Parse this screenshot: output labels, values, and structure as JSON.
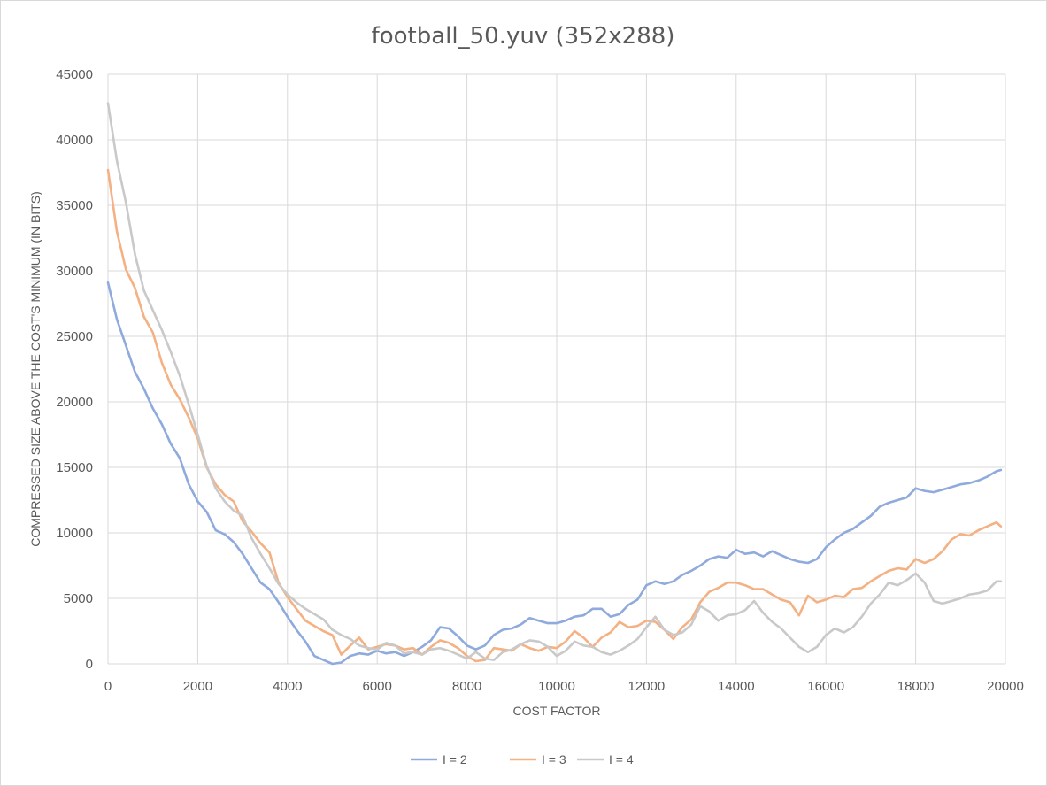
{
  "chart_data": {
    "type": "line",
    "title": "football_50.yuv (352x288)",
    "xlabel": "COST FACTOR",
    "ylabel": "COMPRESSED SIZE ABOVE THE COST'S MINIMUM (IN BITS)",
    "xlim": [
      0,
      20000
    ],
    "ylim": [
      0,
      45000
    ],
    "x_ticks": [
      "0",
      "2000",
      "4000",
      "6000",
      "8000",
      "10000",
      "12000",
      "14000",
      "16000",
      "18000",
      "20000"
    ],
    "y_ticks": [
      "0",
      "5000",
      "10000",
      "15000",
      "20000",
      "25000",
      "30000",
      "35000",
      "40000",
      "45000"
    ],
    "grid": true,
    "legend_position": "bottom",
    "series": [
      {
        "name": "I = 2",
        "color": "#8faadc",
        "points": [
          [
            0,
            29100
          ],
          [
            200,
            26300
          ],
          [
            400,
            24300
          ],
          [
            600,
            22300
          ],
          [
            800,
            21000
          ],
          [
            1000,
            19500
          ],
          [
            1200,
            18300
          ],
          [
            1400,
            16800
          ],
          [
            1600,
            15700
          ],
          [
            1800,
            13700
          ],
          [
            2000,
            12400
          ],
          [
            2200,
            11600
          ],
          [
            2400,
            10200
          ],
          [
            2600,
            9900
          ],
          [
            2800,
            9300
          ],
          [
            3000,
            8400
          ],
          [
            3200,
            7300
          ],
          [
            3400,
            6200
          ],
          [
            3600,
            5700
          ],
          [
            3800,
            4700
          ],
          [
            4000,
            3600
          ],
          [
            4200,
            2600
          ],
          [
            4400,
            1700
          ],
          [
            4600,
            600
          ],
          [
            4800,
            300
          ],
          [
            5000,
            0
          ],
          [
            5200,
            100
          ],
          [
            5400,
            600
          ],
          [
            5600,
            800
          ],
          [
            5800,
            700
          ],
          [
            6000,
            1000
          ],
          [
            6200,
            800
          ],
          [
            6400,
            900
          ],
          [
            6600,
            600
          ],
          [
            6800,
            900
          ],
          [
            7000,
            1300
          ],
          [
            7200,
            1800
          ],
          [
            7400,
            2800
          ],
          [
            7600,
            2700
          ],
          [
            7800,
            2100
          ],
          [
            8000,
            1400
          ],
          [
            8200,
            1100
          ],
          [
            8400,
            1400
          ],
          [
            8600,
            2200
          ],
          [
            8800,
            2600
          ],
          [
            9000,
            2700
          ],
          [
            9200,
            3000
          ],
          [
            9400,
            3500
          ],
          [
            9600,
            3300
          ],
          [
            9800,
            3100
          ],
          [
            10000,
            3100
          ],
          [
            10200,
            3300
          ],
          [
            10400,
            3600
          ],
          [
            10600,
            3700
          ],
          [
            10800,
            4200
          ],
          [
            11000,
            4200
          ],
          [
            11200,
            3600
          ],
          [
            11400,
            3800
          ],
          [
            11600,
            4500
          ],
          [
            11800,
            4900
          ],
          [
            12000,
            6000
          ],
          [
            12200,
            6300
          ],
          [
            12400,
            6100
          ],
          [
            12600,
            6300
          ],
          [
            12800,
            6800
          ],
          [
            13000,
            7100
          ],
          [
            13200,
            7500
          ],
          [
            13400,
            8000
          ],
          [
            13600,
            8200
          ],
          [
            13800,
            8100
          ],
          [
            14000,
            8700
          ],
          [
            14200,
            8400
          ],
          [
            14400,
            8500
          ],
          [
            14600,
            8200
          ],
          [
            14800,
            8600
          ],
          [
            15000,
            8300
          ],
          [
            15200,
            8000
          ],
          [
            15400,
            7800
          ],
          [
            15600,
            7700
          ],
          [
            15800,
            8000
          ],
          [
            16000,
            8900
          ],
          [
            16200,
            9500
          ],
          [
            16400,
            10000
          ],
          [
            16600,
            10300
          ],
          [
            16800,
            10800
          ],
          [
            17000,
            11300
          ],
          [
            17200,
            12000
          ],
          [
            17400,
            12300
          ],
          [
            17600,
            12500
          ],
          [
            17800,
            12700
          ],
          [
            18000,
            13400
          ],
          [
            18200,
            13200
          ],
          [
            18400,
            13100
          ],
          [
            18600,
            13300
          ],
          [
            18800,
            13500
          ],
          [
            19000,
            13700
          ],
          [
            19200,
            13800
          ],
          [
            19400,
            14000
          ],
          [
            19600,
            14300
          ],
          [
            19800,
            14700
          ],
          [
            19900,
            14800
          ]
        ]
      },
      {
        "name": "I = 3",
        "color": "#f4b183",
        "points": [
          [
            0,
            37700
          ],
          [
            200,
            33000
          ],
          [
            400,
            30100
          ],
          [
            600,
            28700
          ],
          [
            800,
            26500
          ],
          [
            1000,
            25300
          ],
          [
            1200,
            23000
          ],
          [
            1400,
            21300
          ],
          [
            1600,
            20200
          ],
          [
            1800,
            18800
          ],
          [
            2000,
            17200
          ],
          [
            2200,
            15000
          ],
          [
            2400,
            13700
          ],
          [
            2600,
            12900
          ],
          [
            2800,
            12400
          ],
          [
            3000,
            10900
          ],
          [
            3200,
            10100
          ],
          [
            3400,
            9200
          ],
          [
            3600,
            8500
          ],
          [
            3800,
            6200
          ],
          [
            4000,
            5100
          ],
          [
            4200,
            4200
          ],
          [
            4400,
            3300
          ],
          [
            4600,
            2900
          ],
          [
            4800,
            2500
          ],
          [
            5000,
            2200
          ],
          [
            5200,
            700
          ],
          [
            5400,
            1400
          ],
          [
            5600,
            2000
          ],
          [
            5800,
            1100
          ],
          [
            6000,
            1300
          ],
          [
            6200,
            1500
          ],
          [
            6400,
            1400
          ],
          [
            6600,
            1100
          ],
          [
            6800,
            1200
          ],
          [
            7000,
            700
          ],
          [
            7200,
            1300
          ],
          [
            7400,
            1800
          ],
          [
            7600,
            1600
          ],
          [
            7800,
            1200
          ],
          [
            8000,
            600
          ],
          [
            8200,
            200
          ],
          [
            8400,
            300
          ],
          [
            8600,
            1200
          ],
          [
            8800,
            1100
          ],
          [
            9000,
            1000
          ],
          [
            9200,
            1500
          ],
          [
            9400,
            1200
          ],
          [
            9600,
            1000
          ],
          [
            9800,
            1300
          ],
          [
            10000,
            1200
          ],
          [
            10200,
            1700
          ],
          [
            10400,
            2500
          ],
          [
            10600,
            2000
          ],
          [
            10800,
            1300
          ],
          [
            11000,
            2000
          ],
          [
            11200,
            2400
          ],
          [
            11400,
            3200
          ],
          [
            11600,
            2800
          ],
          [
            11800,
            2900
          ],
          [
            12000,
            3300
          ],
          [
            12200,
            3200
          ],
          [
            12400,
            2600
          ],
          [
            12600,
            1900
          ],
          [
            12800,
            2800
          ],
          [
            13000,
            3400
          ],
          [
            13200,
            4700
          ],
          [
            13400,
            5500
          ],
          [
            13600,
            5800
          ],
          [
            13800,
            6200
          ],
          [
            14000,
            6200
          ],
          [
            14200,
            6000
          ],
          [
            14400,
            5700
          ],
          [
            14600,
            5700
          ],
          [
            14800,
            5300
          ],
          [
            15000,
            4900
          ],
          [
            15200,
            4700
          ],
          [
            15400,
            3700
          ],
          [
            15600,
            5200
          ],
          [
            15800,
            4700
          ],
          [
            16000,
            4900
          ],
          [
            16200,
            5200
          ],
          [
            16400,
            5100
          ],
          [
            16600,
            5700
          ],
          [
            16800,
            5800
          ],
          [
            17000,
            6300
          ],
          [
            17200,
            6700
          ],
          [
            17400,
            7100
          ],
          [
            17600,
            7300
          ],
          [
            17800,
            7200
          ],
          [
            18000,
            8000
          ],
          [
            18200,
            7700
          ],
          [
            18400,
            8000
          ],
          [
            18600,
            8600
          ],
          [
            18800,
            9500
          ],
          [
            19000,
            9900
          ],
          [
            19200,
            9800
          ],
          [
            19400,
            10200
          ],
          [
            19600,
            10500
          ],
          [
            19800,
            10800
          ],
          [
            19900,
            10500
          ]
        ]
      },
      {
        "name": "I = 4",
        "color": "#c9c9c9",
        "points": [
          [
            0,
            42800
          ],
          [
            200,
            38400
          ],
          [
            400,
            35200
          ],
          [
            600,
            31300
          ],
          [
            800,
            28500
          ],
          [
            1000,
            27000
          ],
          [
            1200,
            25500
          ],
          [
            1400,
            23800
          ],
          [
            1600,
            22000
          ],
          [
            1800,
            19800
          ],
          [
            2000,
            17500
          ],
          [
            2200,
            15100
          ],
          [
            2400,
            13400
          ],
          [
            2600,
            12400
          ],
          [
            2800,
            11700
          ],
          [
            3000,
            11300
          ],
          [
            3200,
            9600
          ],
          [
            3400,
            8400
          ],
          [
            3600,
            7300
          ],
          [
            3800,
            6100
          ],
          [
            4000,
            5300
          ],
          [
            4200,
            4700
          ],
          [
            4400,
            4200
          ],
          [
            4600,
            3800
          ],
          [
            4800,
            3400
          ],
          [
            5000,
            2600
          ],
          [
            5200,
            2200
          ],
          [
            5400,
            1900
          ],
          [
            5600,
            1400
          ],
          [
            5800,
            1200
          ],
          [
            6000,
            1100
          ],
          [
            6200,
            1600
          ],
          [
            6400,
            1400
          ],
          [
            6600,
            800
          ],
          [
            6800,
            900
          ],
          [
            7000,
            700
          ],
          [
            7200,
            1100
          ],
          [
            7400,
            1200
          ],
          [
            7600,
            1000
          ],
          [
            7800,
            700
          ],
          [
            8000,
            400
          ],
          [
            8200,
            900
          ],
          [
            8400,
            400
          ],
          [
            8600,
            300
          ],
          [
            8800,
            900
          ],
          [
            9000,
            1100
          ],
          [
            9200,
            1500
          ],
          [
            9400,
            1800
          ],
          [
            9600,
            1700
          ],
          [
            9800,
            1300
          ],
          [
            10000,
            600
          ],
          [
            10200,
            1000
          ],
          [
            10400,
            1700
          ],
          [
            10600,
            1400
          ],
          [
            10800,
            1300
          ],
          [
            11000,
            900
          ],
          [
            11200,
            700
          ],
          [
            11400,
            1000
          ],
          [
            11600,
            1400
          ],
          [
            11800,
            1900
          ],
          [
            12000,
            2800
          ],
          [
            12200,
            3600
          ],
          [
            12400,
            2600
          ],
          [
            12600,
            2200
          ],
          [
            12800,
            2400
          ],
          [
            13000,
            3000
          ],
          [
            13200,
            4400
          ],
          [
            13400,
            4000
          ],
          [
            13600,
            3300
          ],
          [
            13800,
            3700
          ],
          [
            14000,
            3800
          ],
          [
            14200,
            4100
          ],
          [
            14400,
            4800
          ],
          [
            14600,
            3900
          ],
          [
            14800,
            3200
          ],
          [
            15000,
            2700
          ],
          [
            15200,
            2000
          ],
          [
            15400,
            1300
          ],
          [
            15600,
            900
          ],
          [
            15800,
            1300
          ],
          [
            16000,
            2200
          ],
          [
            16200,
            2700
          ],
          [
            16400,
            2400
          ],
          [
            16600,
            2800
          ],
          [
            16800,
            3600
          ],
          [
            17000,
            4600
          ],
          [
            17200,
            5300
          ],
          [
            17400,
            6200
          ],
          [
            17600,
            6000
          ],
          [
            17800,
            6400
          ],
          [
            18000,
            6900
          ],
          [
            18200,
            6200
          ],
          [
            18400,
            4800
          ],
          [
            18600,
            4600
          ],
          [
            18800,
            4800
          ],
          [
            19000,
            5000
          ],
          [
            19200,
            5300
          ],
          [
            19400,
            5400
          ],
          [
            19600,
            5600
          ],
          [
            19800,
            6300
          ],
          [
            19900,
            6300
          ]
        ]
      }
    ]
  }
}
